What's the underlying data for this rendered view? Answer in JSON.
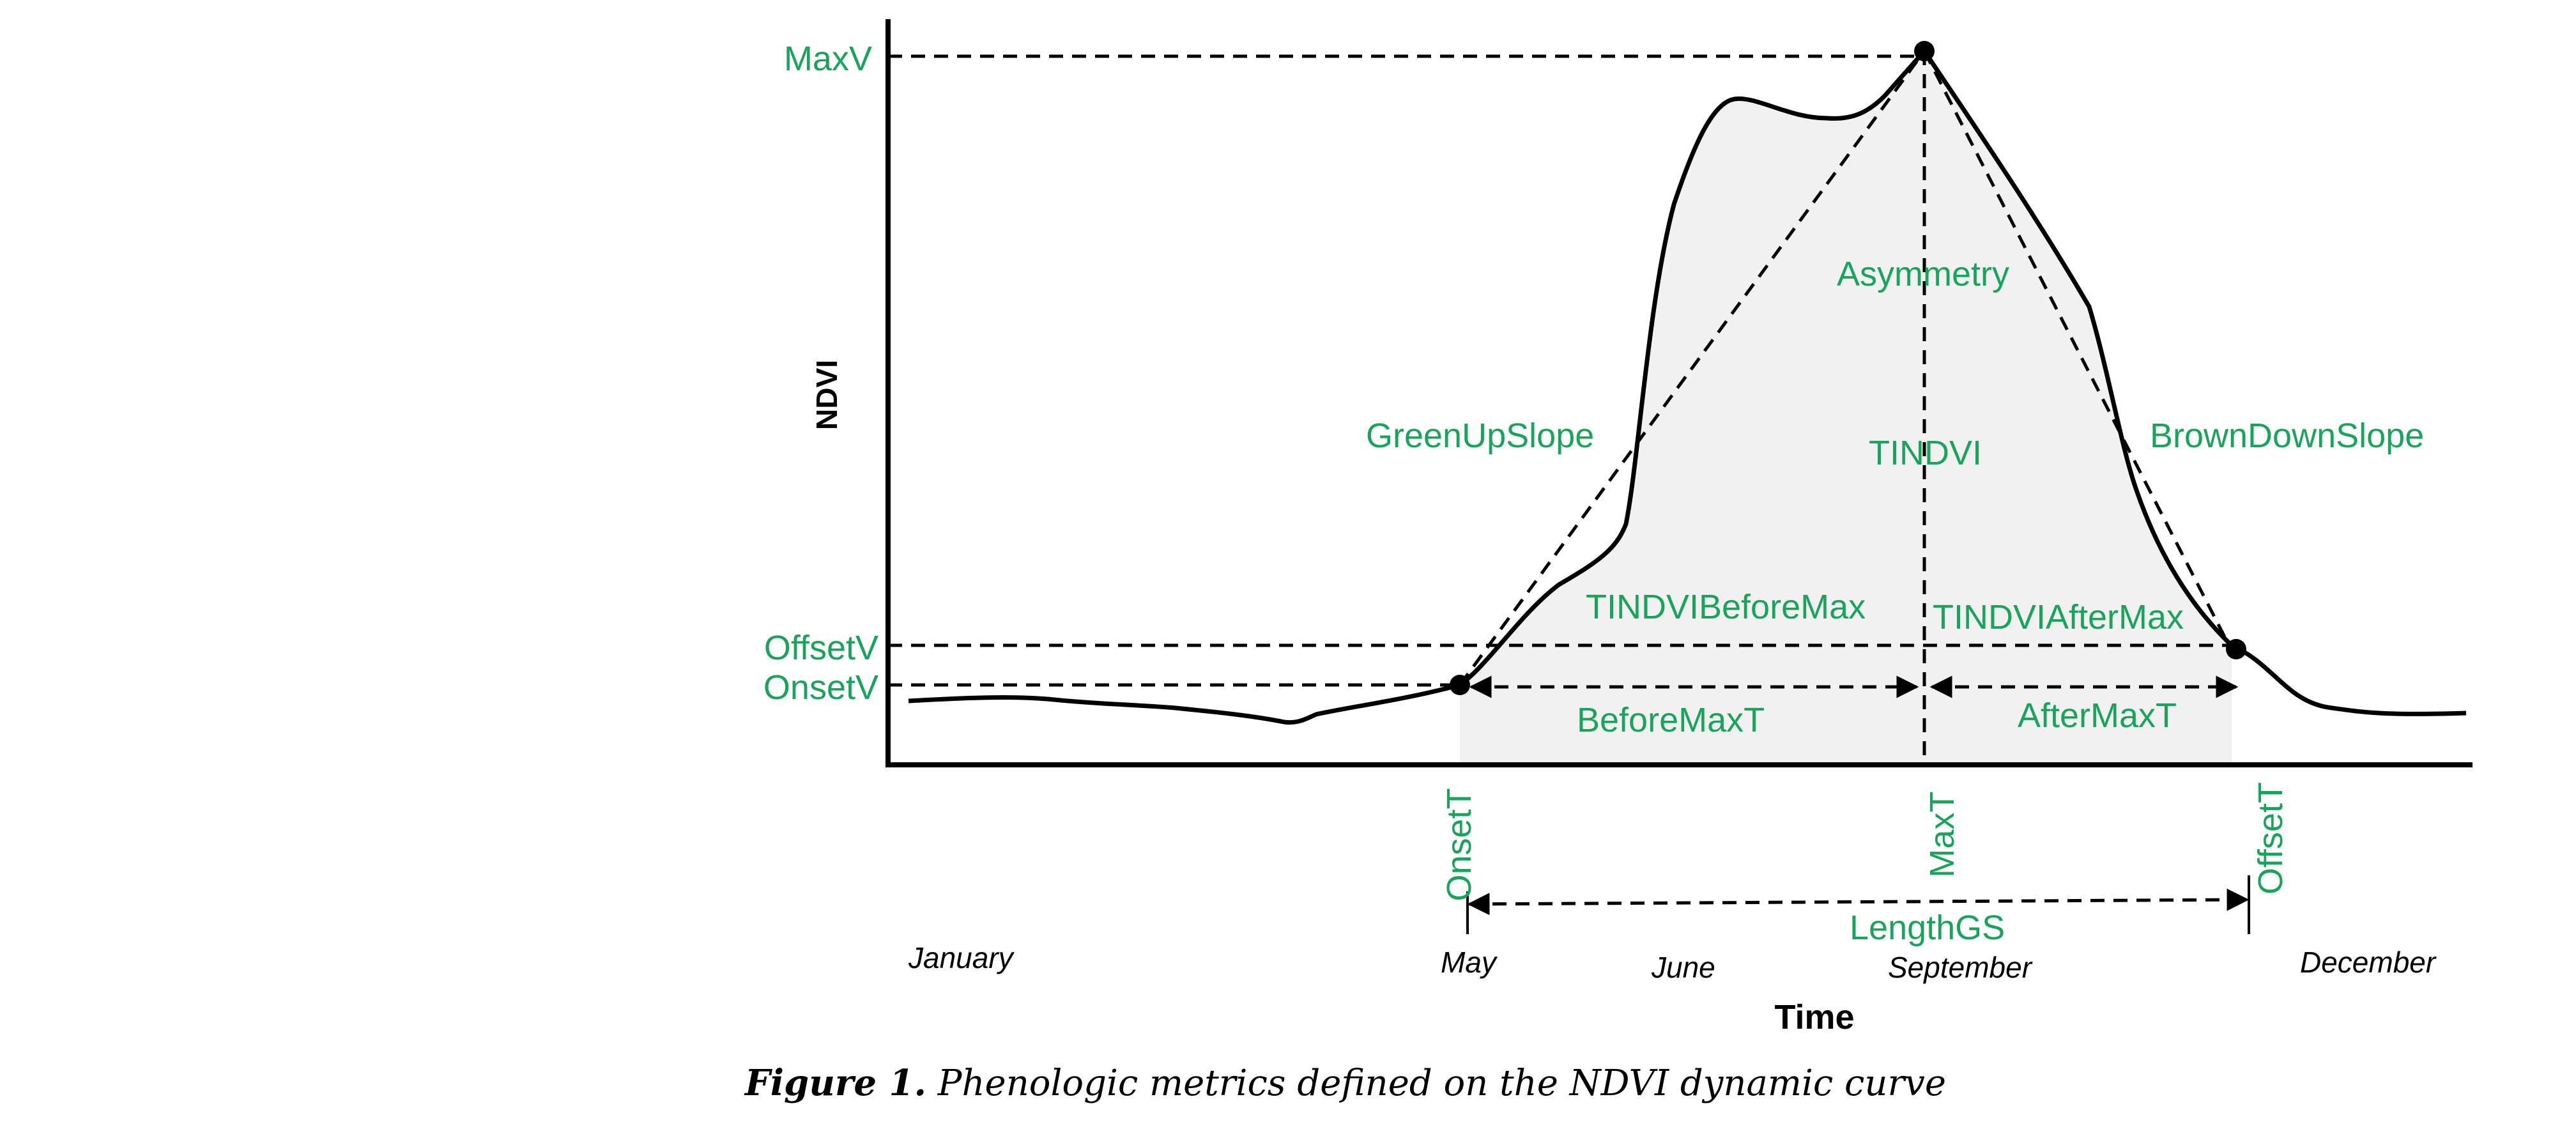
{
  "axes": {
    "y_title": "NDVI",
    "x_title": "Time"
  },
  "months": [
    "January",
    "May",
    "June",
    "September",
    "December"
  ],
  "metrics": {
    "max_v": "MaxV",
    "offset_v": "OffsetV",
    "onset_v": "OnsetV",
    "asymmetry": "Asymmetry",
    "green_up_slope": "GreenUpSlope",
    "tindvi": "TINDVI",
    "brown_down_slope": "BrownDownSlope",
    "tindvi_before_max": "TINDVIBeforeMax",
    "tindvi_after_max": "TINDVIAfterMax",
    "before_max_t": "BeforeMaxT",
    "after_max_t": "AfterMaxT",
    "onset_t": "OnsetT",
    "max_t": "MaxT",
    "offset_t": "OffsetT",
    "length_gs": "LengthGS"
  },
  "caption": {
    "label": "Figure 1.",
    "text": " Phenologic metrics defined on the NDVI dynamic curve"
  },
  "colors": {
    "metric_label": "#1aa35a",
    "curve": "#000000",
    "shading": "#f1f1f1"
  }
}
